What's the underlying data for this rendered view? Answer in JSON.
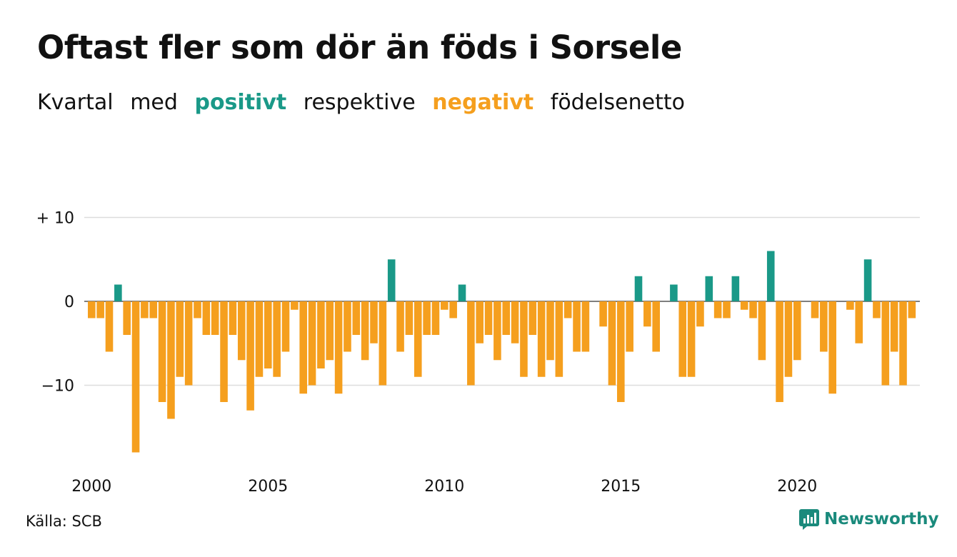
{
  "header": {
    "title": "Oftast fler som dör än föds i Sorsele",
    "subtitle_parts": [
      "Kvartal",
      "med",
      "positivt",
      "respektive",
      "negativt",
      "födelsenetto"
    ]
  },
  "colors": {
    "positive": "#1a9988",
    "negative": "#f59f1e",
    "grid": "#dddddd",
    "brand": "#1a8a7c"
  },
  "chart_data": {
    "type": "bar",
    "x_start": "2000 Q1",
    "categories_note": "quarterly",
    "x_ticks": [
      "2000",
      "2005",
      "2010",
      "2015",
      "2020"
    ],
    "y_ticks": [
      "+ 10",
      "0",
      "−10"
    ],
    "ylim": [
      -19,
      10
    ],
    "values": [
      -2,
      -2,
      -6,
      2,
      -4,
      -18,
      -2,
      -2,
      -12,
      -14,
      -9,
      -10,
      -2,
      -4,
      -4,
      -12,
      -4,
      -7,
      -13,
      -9,
      -8,
      -9,
      -6,
      -1,
      -11,
      -10,
      -8,
      -7,
      -11,
      -6,
      -4,
      -7,
      -5,
      -10,
      5,
      -6,
      -4,
      -9,
      -4,
      -4,
      -1,
      -2,
      2,
      -10,
      -5,
      -4,
      -7,
      -4,
      -5,
      -9,
      -4,
      -9,
      -7,
      -9,
      -2,
      -6,
      -6,
      0,
      -3,
      -10,
      -12,
      -6,
      3,
      -3,
      -6,
      0,
      2,
      -9,
      -9,
      -3,
      3,
      -2,
      -2,
      3,
      -1,
      -2,
      -7,
      6,
      -12,
      -9,
      -7,
      0,
      -2,
      -6,
      -11,
      0,
      -1,
      -5,
      5,
      -2,
      -10,
      -6,
      -10,
      -2
    ]
  },
  "footer": {
    "source": "Källa: SCB",
    "brand": "Newsworthy"
  }
}
